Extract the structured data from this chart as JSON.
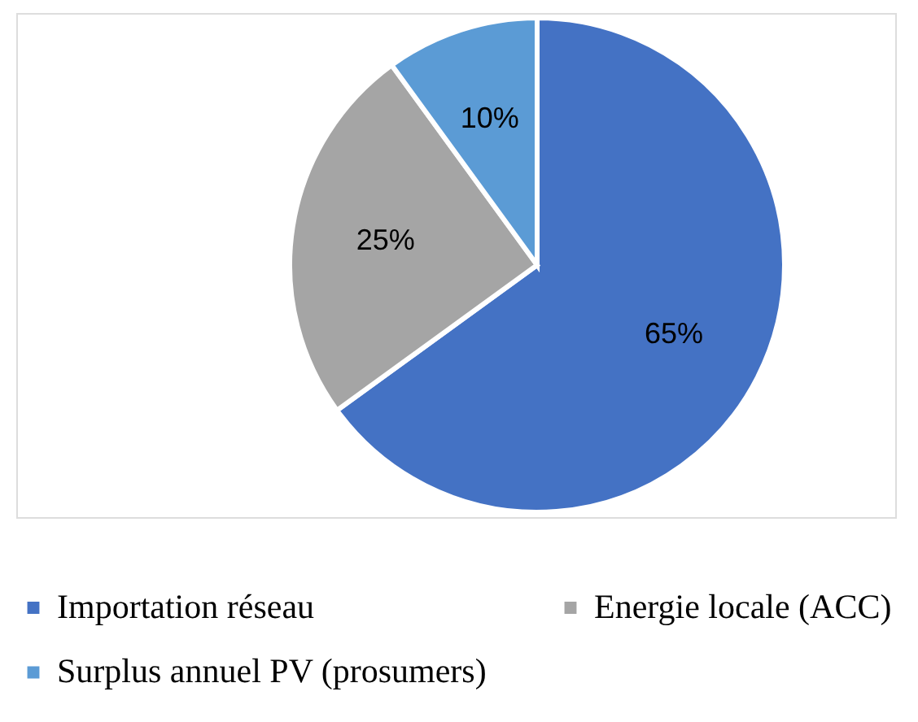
{
  "chart_data": {
    "type": "pie",
    "categories": [
      "Importation réseau",
      "Energie locale (ACC)",
      "Surplus annuel PV (prosumers)"
    ],
    "values": [
      65,
      25,
      10
    ],
    "colors": [
      "#4472c4",
      "#a5a5a5",
      "#5b9bd5"
    ],
    "value_labels": [
      "65%",
      "25%",
      "10%"
    ],
    "legend": "bottom"
  }
}
